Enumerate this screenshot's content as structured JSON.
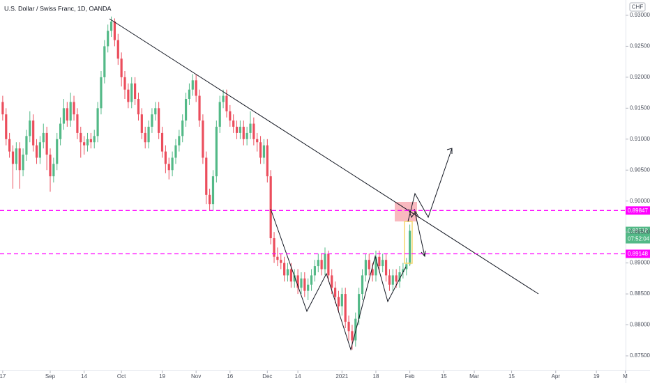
{
  "chart_data": {
    "type": "candlestick",
    "title": "U.S. Dollar / Swiss Franc, 1D, OANDA",
    "currency": "CHF",
    "up_color": "#53b987",
    "down_color": "#eb4d5c",
    "ylim": [
      0.87264,
      0.93247
    ],
    "yticks": [
      {
        "value": 0.875,
        "label": "0.87500"
      },
      {
        "value": 0.88,
        "label": "0.88000"
      },
      {
        "value": 0.885,
        "label": "0.88500"
      },
      {
        "value": 0.89,
        "label": "0.89000"
      },
      {
        "value": 0.895,
        "label": "0.89500"
      },
      {
        "value": 0.9,
        "label": "0.90000"
      },
      {
        "value": 0.905,
        "label": "0.90500"
      },
      {
        "value": 0.91,
        "label": "0.91000"
      },
      {
        "value": 0.915,
        "label": "0.91500"
      },
      {
        "value": 0.92,
        "label": "0.92000"
      },
      {
        "value": 0.925,
        "label": "0.92500"
      },
      {
        "value": 0.93,
        "label": "0.93000"
      }
    ],
    "xlim": [
      -0.8,
      183.6
    ],
    "xticks": [
      {
        "value": 0,
        "label": "17"
      },
      {
        "value": 14,
        "label": "Sep"
      },
      {
        "value": 24,
        "label": "14"
      },
      {
        "value": 35,
        "label": "Oct"
      },
      {
        "value": 47,
        "label": "19"
      },
      {
        "value": 57,
        "label": "Nov"
      },
      {
        "value": 67,
        "label": "16"
      },
      {
        "value": 78,
        "label": "Dec"
      },
      {
        "value": 87,
        "label": "14"
      },
      {
        "value": 100,
        "label": "2021"
      },
      {
        "value": 110,
        "label": "18"
      },
      {
        "value": 120,
        "label": "Feb"
      },
      {
        "value": 130,
        "label": "15"
      },
      {
        "value": 139,
        "label": "Mar"
      },
      {
        "value": 150,
        "label": "15"
      },
      {
        "value": 163,
        "label": "Apr"
      },
      {
        "value": 175,
        "label": "19"
      },
      {
        "value": 183.5,
        "label": "M"
      }
    ],
    "levels": [
      0.89847,
      0.89148
    ],
    "level_color": "#ff00ff",
    "last_price": 0.89518,
    "countdown": "07:52:04",
    "open": [
      0.916,
      0.914,
      0.91,
      0.908,
      0.906,
      0.9085,
      0.905,
      0.9075,
      0.9105,
      0.913,
      0.909,
      0.907,
      0.9095,
      0.911,
      0.9075,
      0.904,
      0.906,
      0.91,
      0.9125,
      0.915,
      0.913,
      0.916,
      0.914,
      0.911,
      0.9095,
      0.909,
      0.91,
      0.9095,
      0.9105,
      0.915,
      0.92,
      0.925,
      0.9275,
      0.929,
      0.926,
      0.923,
      0.92,
      0.918,
      0.916,
      0.919,
      0.9165,
      0.914,
      0.911,
      0.9095,
      0.912,
      0.914,
      0.915,
      0.911,
      0.908,
      0.906,
      0.905,
      0.907,
      0.909,
      0.9105,
      0.913,
      0.9165,
      0.918,
      0.9195,
      0.917,
      0.913,
      0.907,
      0.901,
      0.8995,
      0.904,
      0.912,
      0.916,
      0.917,
      0.9145,
      0.913,
      0.912,
      0.911,
      0.912,
      0.91,
      0.911,
      0.9125,
      0.91,
      0.9095,
      0.907,
      0.909,
      0.904,
      0.894,
      0.891,
      0.8905,
      0.89,
      0.888,
      0.889,
      0.887,
      0.888,
      0.886,
      0.8875,
      0.8855,
      0.8865,
      0.888,
      0.8895,
      0.8905,
      0.889,
      0.8915,
      0.888,
      0.886,
      0.8845,
      0.883,
      0.885,
      0.8805,
      0.879,
      0.8775,
      0.881,
      0.885,
      0.888,
      0.8905,
      0.889,
      0.888,
      0.891,
      0.8895,
      0.8905,
      0.888,
      0.8865,
      0.888,
      0.887,
      0.8885,
      0.889,
      0.8898
    ],
    "high": [
      0.917,
      0.915,
      0.911,
      0.909,
      0.9095,
      0.9095,
      0.9085,
      0.9115,
      0.9145,
      0.914,
      0.91,
      0.9105,
      0.9125,
      0.912,
      0.9085,
      0.907,
      0.911,
      0.9135,
      0.9165,
      0.916,
      0.9175,
      0.917,
      0.915,
      0.912,
      0.9105,
      0.911,
      0.911,
      0.9115,
      0.916,
      0.921,
      0.926,
      0.9285,
      0.9298,
      0.9295,
      0.927,
      0.924,
      0.921,
      0.919,
      0.92,
      0.92,
      0.9175,
      0.915,
      0.912,
      0.913,
      0.915,
      0.916,
      0.916,
      0.912,
      0.909,
      0.907,
      0.908,
      0.91,
      0.9115,
      0.914,
      0.9175,
      0.919,
      0.9205,
      0.9205,
      0.918,
      0.914,
      0.908,
      0.902,
      0.905,
      0.913,
      0.917,
      0.918,
      0.918,
      0.9155,
      0.914,
      0.913,
      0.913,
      0.913,
      0.912,
      0.9145,
      0.9135,
      0.911,
      0.9105,
      0.91,
      0.91,
      0.905,
      0.895,
      0.8925,
      0.8915,
      0.891,
      0.89,
      0.89,
      0.889,
      0.889,
      0.8885,
      0.8885,
      0.8875,
      0.889,
      0.8905,
      0.8915,
      0.8915,
      0.8925,
      0.892,
      0.889,
      0.887,
      0.8855,
      0.886,
      0.886,
      0.8815,
      0.88,
      0.882,
      0.886,
      0.889,
      0.8915,
      0.8915,
      0.89,
      0.892,
      0.892,
      0.8915,
      0.8915,
      0.889,
      0.889,
      0.889,
      0.8895,
      0.89,
      0.8908,
      0.8962
    ],
    "low": [
      0.913,
      0.909,
      0.907,
      0.902,
      0.905,
      0.902,
      0.904,
      0.9065,
      0.9095,
      0.908,
      0.906,
      0.906,
      0.9085,
      0.905,
      0.9015,
      0.903,
      0.905,
      0.909,
      0.9115,
      0.912,
      0.912,
      0.913,
      0.91,
      0.907,
      0.9075,
      0.908,
      0.9085,
      0.9085,
      0.9095,
      0.914,
      0.919,
      0.924,
      0.9265,
      0.925,
      0.922,
      0.9185,
      0.9165,
      0.915,
      0.915,
      0.9155,
      0.913,
      0.91,
      0.9085,
      0.9085,
      0.911,
      0.913,
      0.91,
      0.907,
      0.9045,
      0.9035,
      0.904,
      0.906,
      0.908,
      0.9095,
      0.912,
      0.9155,
      0.917,
      0.916,
      0.912,
      0.906,
      0.8995,
      0.8985,
      0.8985,
      0.903,
      0.911,
      0.915,
      0.9135,
      0.912,
      0.911,
      0.91,
      0.91,
      0.909,
      0.909,
      0.91,
      0.909,
      0.908,
      0.906,
      0.906,
      0.903,
      0.893,
      0.89,
      0.8895,
      0.889,
      0.887,
      0.887,
      0.886,
      0.886,
      0.885,
      0.885,
      0.8845,
      0.884,
      0.8855,
      0.887,
      0.8885,
      0.888,
      0.888,
      0.887,
      0.885,
      0.8835,
      0.882,
      0.8815,
      0.8795,
      0.8775,
      0.876,
      0.8765,
      0.88,
      0.884,
      0.887,
      0.888,
      0.887,
      0.887,
      0.8885,
      0.8885,
      0.887,
      0.8855,
      0.8855,
      0.886,
      0.886,
      0.8875,
      0.888,
      0.8895
    ],
    "close": [
      0.914,
      0.91,
      0.908,
      0.906,
      0.9085,
      0.905,
      0.9075,
      0.9105,
      0.913,
      0.909,
      0.907,
      0.9095,
      0.911,
      0.9075,
      0.904,
      0.906,
      0.91,
      0.9125,
      0.915,
      0.913,
      0.916,
      0.914,
      0.911,
      0.9095,
      0.909,
      0.91,
      0.9095,
      0.9105,
      0.915,
      0.92,
      0.925,
      0.9275,
      0.929,
      0.926,
      0.923,
      0.92,
      0.918,
      0.916,
      0.919,
      0.9165,
      0.914,
      0.911,
      0.9095,
      0.912,
      0.914,
      0.915,
      0.911,
      0.908,
      0.906,
      0.905,
      0.907,
      0.909,
      0.9105,
      0.913,
      0.9165,
      0.918,
      0.9195,
      0.917,
      0.913,
      0.907,
      0.901,
      0.8995,
      0.904,
      0.912,
      0.916,
      0.917,
      0.9145,
      0.913,
      0.912,
      0.911,
      0.912,
      0.91,
      0.911,
      0.9125,
      0.91,
      0.9095,
      0.907,
      0.909,
      0.904,
      0.894,
      0.891,
      0.8905,
      0.89,
      0.888,
      0.889,
      0.887,
      0.888,
      0.886,
      0.8875,
      0.8855,
      0.8865,
      0.888,
      0.8895,
      0.8905,
      0.889,
      0.8915,
      0.888,
      0.886,
      0.8845,
      0.883,
      0.885,
      0.8805,
      0.879,
      0.8775,
      0.881,
      0.885,
      0.888,
      0.8905,
      0.889,
      0.888,
      0.891,
      0.8895,
      0.8905,
      0.888,
      0.8865,
      0.888,
      0.887,
      0.8885,
      0.889,
      0.8898,
      0.8952
    ]
  }
}
